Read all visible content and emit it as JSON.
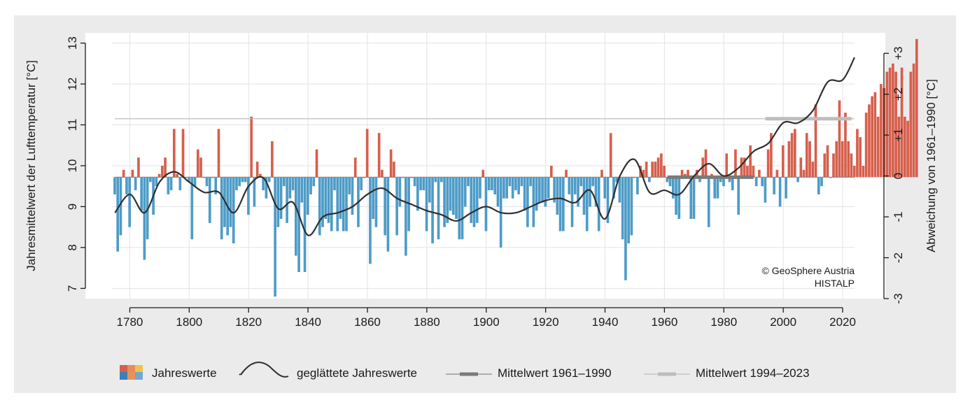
{
  "chart_data": {
    "type": "bar",
    "title": "",
    "ylabel": "Jahresmittelwert der Lufttemperatur [°C]",
    "y2label": "Abweichung von 1961–1990 [°C]",
    "ylim": [
      6.75,
      13.25
    ],
    "y2lim": [
      -3.0,
      3.5
    ],
    "xlim": [
      1774,
      2024
    ],
    "baseline": 9.72,
    "mean_1994_2023": 11.15,
    "yticks": [
      7,
      8,
      9,
      10,
      11,
      12,
      13
    ],
    "yticks_labels": [
      "7",
      "8",
      "9",
      "10",
      "11",
      "12",
      "13"
    ],
    "y2ticks": [
      -3,
      -2,
      -1,
      0,
      1,
      2,
      3
    ],
    "y2ticks_labels": [
      "-3",
      "-2",
      "-1",
      "0",
      "+1",
      "+2",
      "+3"
    ],
    "xticks": [
      1780,
      1800,
      1820,
      1840,
      1860,
      1880,
      1900,
      1920,
      1940,
      1960,
      1980,
      2000,
      2020
    ],
    "xticks_labels": [
      "1780",
      "1800",
      "1820",
      "1840",
      "1860",
      "1880",
      "1900",
      "1920",
      "1940",
      "1960",
      "1980",
      "2000",
      "2020"
    ],
    "x_start": 1775,
    "values": [
      9.3,
      7.9,
      8.3,
      9.9,
      9.3,
      8.5,
      9.9,
      9.4,
      10.2,
      8.9,
      7.7,
      8.2,
      9.6,
      8.8,
      9.5,
      9.8,
      10,
      10.2,
      9.3,
      9.4,
      10.9,
      9.8,
      9.4,
      10.9,
      9.7,
      9.6,
      8.2,
      9.5,
      10.4,
      10.2,
      9.7,
      9.5,
      8.6,
      9.7,
      9.3,
      10.9,
      8.2,
      8.5,
      8.3,
      8.5,
      8.1,
      9.4,
      9.5,
      9.6,
      9.6,
      8.8,
      11.2,
      9,
      10.1,
      9.8,
      9.4,
      9.2,
      9.6,
      10.6,
      6.8,
      8.5,
      8.7,
      9.5,
      8.6,
      9.2,
      9.4,
      7.8,
      7.4,
      9.1,
      7.4,
      8.8,
      9.3,
      9.5,
      10.4,
      8.3,
      8.5,
      8.7,
      8.6,
      8.4,
      9.4,
      8.4,
      8.7,
      8.4,
      8.4,
      9.3,
      8.8,
      10.2,
      8.5,
      9.4,
      9.7,
      10.9,
      7.6,
      8.7,
      8.5,
      10.8,
      9.9,
      8.3,
      7.9,
      10.4,
      10.1,
      8.3,
      9,
      9.7,
      7.8,
      8.4,
      9.7,
      9.5,
      8.9,
      9.4,
      9.4,
      8.4,
      9.1,
      8.1,
      9.6,
      8.2,
      9.6,
      8.5,
      8.6,
      8.9,
      8.8,
      8.7,
      8.2,
      8.2,
      9,
      9.5,
      8.6,
      8.5,
      8.6,
      9.2,
      9.9,
      8.4,
      9.4,
      9.4,
      9.3,
      9,
      8,
      9.2,
      9.2,
      9.5,
      9.2,
      9.4,
      9.3,
      9.5,
      8.9,
      8.5,
      9.5,
      8.5,
      8.9,
      9.1,
      9.1,
      9,
      9.2,
      10,
      9.1,
      8.8,
      8.4,
      8.4,
      9.9,
      9.3,
      8.5,
      9.3,
      9,
      9.5,
      8.8,
      8.4,
      9,
      9.5,
      9,
      8.4,
      9.9,
      9.2,
      8.6,
      10.8,
      9.2,
      9.6,
      9.1,
      8.2,
      7.2,
      8.1,
      8.3,
      9.7,
      9.3,
      10,
      9.9,
      10.1,
      9.6,
      10.1,
      10.1,
      10.2,
      10.3,
      10,
      9.6,
      9.5,
      9.2,
      8.8,
      8.7,
      9.9,
      9.8,
      9.9,
      8.7,
      8.7,
      9.9,
      9.6,
      10.2,
      10.4,
      8.5,
      9.8,
      9.2,
      9.2,
      9.6,
      9.5,
      10.3,
      9.6,
      9.4,
      10.4,
      8.8,
      10.2,
      10.2,
      10,
      10.5,
      10,
      9.5,
      9.9,
      9.5,
      9.1,
      10.4,
      10.8,
      9.3,
      9.9,
      9,
      10.5,
      9.2,
      10.6,
      10.8,
      10.9,
      9.6,
      10.2,
      9.9,
      10.8,
      10.6,
      10.1,
      11.5,
      9.3,
      9.5,
      10.3,
      10.5,
      9.7,
      10.3,
      10.6,
      11.6,
      10.6,
      11.3,
      10.6,
      10.3,
      10,
      10.9,
      10.7,
      10,
      11.3,
      11.5,
      11.7,
      11.8,
      11.2,
      12,
      11.9,
      12.3,
      12.4,
      12.5,
      12.3,
      11.2,
      12.4,
      11.2,
      11.1,
      12.3,
      12.5,
      13.1
    ],
    "smoothed": {
      "x": [
        1775,
        1780,
        1785,
        1790,
        1795,
        1800,
        1805,
        1810,
        1815,
        1820,
        1825,
        1830,
        1835,
        1840,
        1845,
        1850,
        1855,
        1860,
        1865,
        1870,
        1875,
        1880,
        1885,
        1890,
        1895,
        1900,
        1905,
        1910,
        1915,
        1920,
        1925,
        1930,
        1935,
        1940,
        1945,
        1950,
        1955,
        1960,
        1965,
        1970,
        1975,
        1980,
        1985,
        1990,
        1995,
        2000,
        2005,
        2010,
        2015,
        2020,
        2024
      ],
      "y": [
        8.85,
        9.3,
        8.85,
        9.6,
        9.85,
        9.6,
        9.35,
        9.35,
        8.85,
        9.5,
        9.7,
        8.95,
        9.1,
        8.3,
        8.75,
        8.85,
        9.0,
        9.3,
        9.45,
        9.2,
        9.05,
        8.9,
        8.8,
        8.65,
        8.85,
        9.0,
        8.85,
        8.85,
        9.0,
        9.15,
        9.2,
        9.1,
        9.4,
        8.7,
        9.75,
        10.15,
        9.35,
        9.4,
        9.3,
        9.75,
        10.05,
        9.75,
        9.95,
        10.35,
        10.55,
        11.05,
        11.05,
        11.35,
        12.05,
        12.1,
        12.65
      ]
    }
  },
  "copyright": {
    "line1": "© GeoSphere Austria",
    "line2": "HISTALP"
  },
  "legend": {
    "items": [
      {
        "label": "Jahreswerte"
      },
      {
        "label": "geglättete Jahreswerte"
      },
      {
        "label": "Mittelwert 1961–1990"
      },
      {
        "label": "Mittelwert 1994–2023"
      }
    ]
  },
  "colors": {
    "positive": "#d65f4c",
    "negative": "#4d9bc7",
    "smooth": "#2f2f2f",
    "mean_1961_1990": "#8a8a8a",
    "mean_1994_2023": "#bdbdbd",
    "grid": "#e3e3e3",
    "frame_bg": "#ebebeb",
    "plot_bg": "#ffffff"
  }
}
